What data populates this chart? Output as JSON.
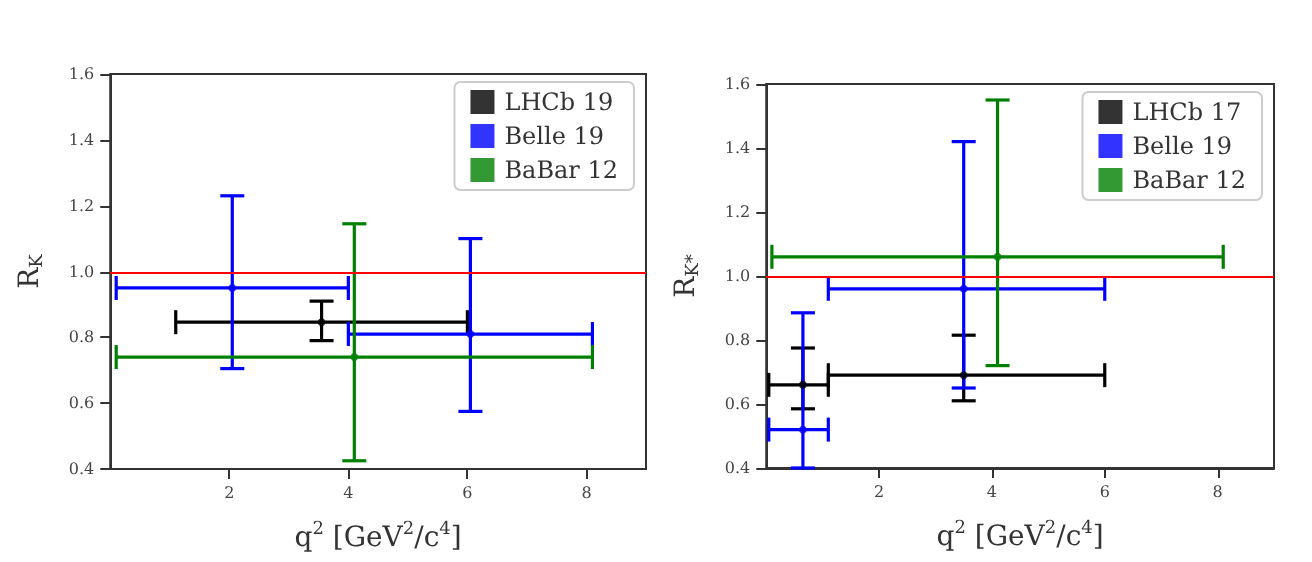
{
  "chart_data": [
    {
      "type": "scatter",
      "xlabel": "q$^{2}$ [GeV$^{2}$/c$^{4}$]",
      "ylabel": "R$_{K}$",
      "xlim": [
        0,
        9
      ],
      "ylim": [
        0.4,
        1.6
      ],
      "xticks": [
        2,
        4,
        6,
        8
      ],
      "yticks": [
        0.4,
        0.6,
        0.8,
        {
          "value": 1,
          "label": "1.0"
        },
        1.2,
        1.4,
        1.6
      ],
      "grid": false,
      "legend": "top right",
      "marker": "circle",
      "series": [
        {
          "name": "LHCb 19",
          "color": "#000000",
          "x": [
            3.55
          ],
          "values": [
            0.846
          ],
          "errors": [
            [
              0.79,
              0.91
            ]
          ],
          "xerrors": [
            [
              1.1,
              6.0
            ]
          ]
        },
        {
          "name": "Belle 19",
          "color": "#0000ff",
          "x": [
            2.05,
            6.05
          ],
          "values": [
            0.95,
            0.81
          ],
          "errors": [
            [
              0.705,
              1.23
            ],
            [
              0.575,
              1.1
            ]
          ],
          "xerrors": [
            [
              0.1,
              4.0
            ],
            [
              4.0,
              8.1
            ]
          ]
        },
        {
          "name": "BaBar 12",
          "color": "#008000",
          "x": [
            4.1
          ],
          "values": [
            0.74
          ],
          "errors": [
            [
              0.425,
              1.145
            ]
          ],
          "xerrors": [
            [
              0.1,
              8.1
            ]
          ]
        }
      ],
      "ref_lines": [
        {
          "axis": "y",
          "value": 1.0,
          "color": "#ff0000"
        }
      ]
    },
    {
      "type": "scatter",
      "xlabel": "q$^{2}$ [GeV$^{2}$/c$^{4}$]",
      "ylabel": "R$_{K*}$",
      "xlim": [
        0,
        9
      ],
      "ylim": [
        0.4,
        1.6
      ],
      "xticks": [
        2,
        4,
        6,
        8
      ],
      "yticks": [
        0.4,
        0.6,
        0.8,
        {
          "value": 1,
          "label": "1.0"
        },
        1.2,
        1.4,
        1.6
      ],
      "grid": false,
      "legend": "top right",
      "marker": "circle",
      "series": [
        {
          "name": "LHCb 17",
          "color": "#000000",
          "x": [
            0.65,
            3.5
          ],
          "values": [
            0.66,
            0.69
          ],
          "errors": [
            [
              0.585,
              0.775
            ],
            [
              0.61,
              0.815
            ]
          ],
          "xerrors": [
            [
              0.045,
              1.1
            ],
            [
              1.1,
              6.0
            ]
          ]
        },
        {
          "name": "Belle 19",
          "color": "#0000ff",
          "x": [
            0.65,
            3.5
          ],
          "values": [
            0.52,
            0.96
          ],
          "errors": [
            [
              0.4,
              0.885
            ],
            [
              0.65,
              1.42
            ]
          ],
          "xerrors": [
            [
              0.045,
              1.1
            ],
            [
              1.1,
              6.0
            ]
          ]
        },
        {
          "name": "BaBar 12",
          "color": "#008000",
          "x": [
            4.1
          ],
          "values": [
            1.06
          ],
          "errors": [
            [
              0.72,
              1.55
            ]
          ],
          "xerrors": [
            [
              0.1,
              8.1
            ]
          ]
        }
      ],
      "ref_lines": [
        {
          "axis": "y",
          "value": 1.0,
          "color": "#ff0000"
        }
      ]
    }
  ]
}
